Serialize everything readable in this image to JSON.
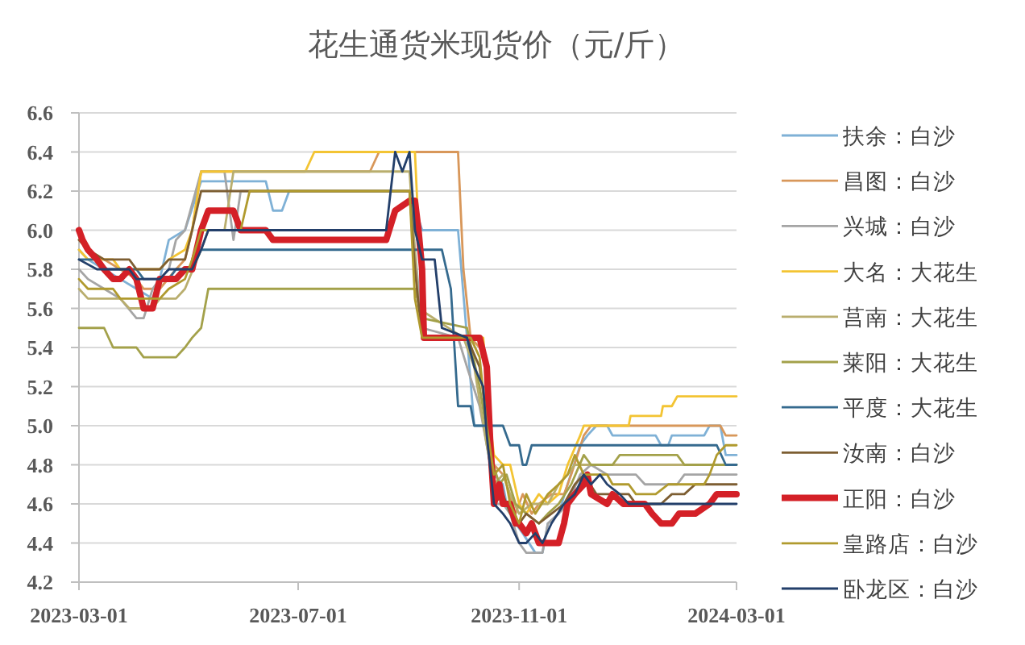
{
  "chart_data": {
    "type": "line",
    "title": "花生通货米现货价（元/斤）",
    "xlim": [
      "2023-03-01",
      "2024-03-01"
    ],
    "xticks": [
      "2023-03-01",
      "2023-07-01",
      "2023-11-01",
      "2024-03-01"
    ],
    "ylim": [
      4.2,
      6.6
    ],
    "yticks": [
      4.2,
      4.4,
      4.6,
      4.8,
      {
        "value": 5,
        "label": "5.0"
      },
      5.2,
      5.4,
      5.6,
      5.8,
      {
        "value": 6,
        "label": "6.0"
      },
      6.2,
      6.4,
      6.6
    ],
    "grid": "y",
    "legend": "right",
    "series": [
      {
        "name": "扶余：白沙",
        "color": "#7fb1d6",
        "x": [
          "2023-03-01",
          "2023-03-06",
          "2023-03-15",
          "2023-03-24",
          "2023-04-02",
          "2023-04-11",
          "2023-04-15",
          "2023-04-20",
          "2023-04-29",
          "2023-05-08",
          "2023-06-13",
          "2023-06-17",
          "2023-06-22",
          "2023-06-26",
          "2023-09-01",
          "2023-09-08",
          "2023-09-28",
          "2023-10-03",
          "2023-10-07",
          "2023-10-14",
          "2023-10-16",
          "2023-10-18",
          "2023-10-23",
          "2023-10-25",
          "2023-10-30",
          "2023-11-03",
          "2023-11-10",
          "2023-11-14",
          "2023-11-17",
          "2023-11-23",
          "2023-11-28",
          "2023-12-05",
          "2023-12-09",
          "2023-12-14",
          "2023-12-20",
          "2023-12-23",
          "2024-01-16",
          "2024-01-19",
          "2024-01-23",
          "2024-01-25",
          "2024-02-12",
          "2024-02-15",
          "2024-02-21",
          "2024-02-24",
          "2024-03-01"
        ],
        "values": [
          5.9,
          5.85,
          5.8,
          5.75,
          5.7,
          5.65,
          5.75,
          5.95,
          6.0,
          6.25,
          6.25,
          6.1,
          6.1,
          6.2,
          6.2,
          6.0,
          6.0,
          5.45,
          5.0,
          5.0,
          4.9,
          4.75,
          4.7,
          4.6,
          4.5,
          4.45,
          4.35,
          4.35,
          4.5,
          4.55,
          4.7,
          4.9,
          4.95,
          5.0,
          5.0,
          4.95,
          4.95,
          4.9,
          4.9,
          4.95,
          4.95,
          5.0,
          5.0,
          4.85,
          4.85
        ]
      },
      {
        "name": "昌图：白沙",
        "color": "#d8975a",
        "x": [
          "2023-03-01",
          "2023-03-06",
          "2023-03-15",
          "2023-03-24",
          "2023-04-02",
          "2023-04-06",
          "2023-04-15",
          "2023-04-24",
          "2023-04-29",
          "2023-05-03",
          "2023-05-08",
          "2023-08-10",
          "2023-08-15",
          "2023-09-28",
          "2023-10-01",
          "2023-10-05",
          "2023-10-10",
          "2023-10-14",
          "2023-10-16",
          "2023-10-18",
          "2023-10-23",
          "2023-10-25",
          "2023-10-30",
          "2023-11-03",
          "2023-11-08",
          "2023-11-12",
          "2023-11-19",
          "2023-11-26",
          "2023-11-30",
          "2023-12-07",
          "2023-12-11",
          "2024-02-21",
          "2024-02-24",
          "2024-03-01"
        ],
        "values": [
          5.95,
          5.9,
          5.85,
          5.8,
          5.75,
          5.7,
          5.7,
          5.8,
          5.85,
          6.0,
          6.3,
          6.3,
          6.4,
          6.4,
          5.8,
          5.45,
          5.4,
          5.3,
          4.95,
          4.8,
          4.75,
          4.7,
          4.55,
          4.65,
          4.55,
          4.6,
          4.65,
          4.65,
          4.75,
          4.95,
          5.0,
          5.0,
          4.95,
          4.95
        ]
      },
      {
        "name": "兴城：白沙",
        "color": "#a5a5a5",
        "x": [
          "2023-03-01",
          "2023-03-06",
          "2023-03-15",
          "2023-03-24",
          "2023-04-02",
          "2023-04-06",
          "2023-04-11",
          "2023-04-15",
          "2023-04-20",
          "2023-04-24",
          "2023-04-29",
          "2023-05-08",
          "2023-05-21",
          "2023-05-26",
          "2023-05-30",
          "2023-09-01",
          "2023-09-04",
          "2023-09-08",
          "2023-09-28",
          "2023-10-03",
          "2023-10-10",
          "2023-10-16",
          "2023-10-18",
          "2023-10-23",
          "2023-10-27",
          "2023-11-01",
          "2023-11-05",
          "2023-11-14",
          "2023-11-17",
          "2023-11-23",
          "2023-11-28",
          "2023-12-05",
          "2023-12-11",
          "2023-12-20",
          "2024-01-05",
          "2024-01-10",
          "2024-01-28",
          "2024-02-01",
          "2024-03-01"
        ],
        "values": [
          5.8,
          5.75,
          5.7,
          5.65,
          5.55,
          5.55,
          5.7,
          5.75,
          5.8,
          5.95,
          6.0,
          6.3,
          6.3,
          5.95,
          6.2,
          6.2,
          5.9,
          5.5,
          5.45,
          5.3,
          5.1,
          4.8,
          4.6,
          4.6,
          4.55,
          4.4,
          4.35,
          4.35,
          4.5,
          4.55,
          4.6,
          4.75,
          4.8,
          4.75,
          4.75,
          4.7,
          4.7,
          4.75,
          4.75
        ]
      },
      {
        "name": "大名：大花生",
        "color": "#f3c433",
        "x": [
          "2023-03-01",
          "2023-03-06",
          "2023-03-20",
          "2023-03-24",
          "2023-04-15",
          "2023-04-20",
          "2023-04-29",
          "2023-05-03",
          "2023-05-08",
          "2023-07-05",
          "2023-07-10",
          "2023-09-04",
          "2023-09-08",
          "2023-09-10",
          "2023-10-12",
          "2023-10-16",
          "2023-10-18",
          "2023-10-23",
          "2023-10-27",
          "2023-11-01",
          "2023-11-05",
          "2023-11-12",
          "2023-11-17",
          "2023-11-23",
          "2023-11-28",
          "2023-12-05",
          "2023-12-07",
          "2024-01-01",
          "2024-01-02",
          "2024-01-19",
          "2024-01-20",
          "2024-01-25",
          "2024-01-28",
          "2024-03-01"
        ],
        "values": [
          5.9,
          5.85,
          5.85,
          5.8,
          5.8,
          5.85,
          5.9,
          6.0,
          6.3,
          6.3,
          6.4,
          6.4,
          5.6,
          5.45,
          5.45,
          5.0,
          4.85,
          4.8,
          4.8,
          4.6,
          4.55,
          4.65,
          4.6,
          4.65,
          4.8,
          4.95,
          5.0,
          5.0,
          5.05,
          5.05,
          5.1,
          5.1,
          5.15,
          5.15
        ]
      },
      {
        "name": "莒南：大花生",
        "color": "#b9ae6e",
        "x": [
          "2023-03-01",
          "2023-03-06",
          "2023-03-24",
          "2023-03-29",
          "2023-04-11",
          "2023-04-15",
          "2023-04-24",
          "2023-04-29",
          "2023-05-08",
          "2023-05-12",
          "2023-05-21",
          "2023-05-26",
          "2023-09-01",
          "2023-09-06",
          "2023-10-01",
          "2023-10-07",
          "2023-10-14",
          "2023-10-18",
          "2023-10-23",
          "2023-10-27",
          "2023-11-01",
          "2023-11-08",
          "2023-11-17",
          "2023-11-23",
          "2023-11-28",
          "2023-12-02",
          "2024-03-01"
        ],
        "values": [
          5.7,
          5.65,
          5.65,
          5.6,
          5.6,
          5.65,
          5.65,
          5.7,
          5.9,
          6.0,
          6.0,
          6.3,
          6.3,
          5.6,
          5.45,
          5.3,
          4.9,
          4.7,
          4.75,
          4.65,
          4.55,
          4.6,
          4.6,
          4.7,
          4.75,
          4.8,
          4.8
        ]
      },
      {
        "name": "莱阳：大花生",
        "color": "#a3a14a",
        "x": [
          "2023-03-01",
          "2023-03-15",
          "2023-03-20",
          "2023-04-02",
          "2023-04-06",
          "2023-04-24",
          "2023-04-29",
          "2023-05-03",
          "2023-05-08",
          "2023-05-12",
          "2023-09-04",
          "2023-09-08",
          "2023-10-03",
          "2023-10-10",
          "2023-10-16",
          "2023-10-21",
          "2023-10-25",
          "2023-10-30",
          "2023-11-05",
          "2023-11-12",
          "2023-11-17",
          "2023-11-23",
          "2023-11-30",
          "2023-12-07",
          "2023-12-11",
          "2023-12-23",
          "2023-12-27",
          "2024-01-28",
          "2024-02-01",
          "2024-03-01"
        ],
        "values": [
          5.5,
          5.5,
          5.4,
          5.4,
          5.35,
          5.35,
          5.4,
          5.45,
          5.5,
          5.7,
          5.7,
          5.55,
          5.5,
          5.2,
          4.85,
          4.7,
          4.75,
          4.6,
          4.55,
          4.5,
          4.55,
          4.6,
          4.7,
          4.85,
          4.8,
          4.8,
          4.85,
          4.85,
          4.8,
          4.8
        ]
      },
      {
        "name": "平度：大花生",
        "color": "#356a8e",
        "x": [
          "2023-03-01",
          "2023-03-11",
          "2023-03-15",
          "2023-04-02",
          "2023-04-06",
          "2023-04-20",
          "2023-04-24",
          "2023-05-03",
          "2023-05-08",
          "2023-09-19",
          "2023-09-24",
          "2023-09-28",
          "2023-10-05",
          "2023-10-07",
          "2023-10-23",
          "2023-10-27",
          "2023-11-01",
          "2023-11-03",
          "2023-11-05",
          "2023-11-08",
          "2024-02-19",
          "2024-02-24",
          "2024-03-01"
        ],
        "values": [
          5.85,
          5.85,
          5.8,
          5.8,
          5.75,
          5.75,
          5.8,
          5.8,
          5.9,
          5.9,
          5.7,
          5.1,
          5.1,
          5.0,
          5.0,
          4.9,
          4.9,
          4.8,
          4.8,
          4.9,
          4.9,
          4.8,
          4.8
        ]
      },
      {
        "name": "汝南：白沙",
        "color": "#7d5e32",
        "x": [
          "2023-03-01",
          "2023-03-06",
          "2023-03-15",
          "2023-03-29",
          "2023-04-02",
          "2023-04-15",
          "2023-04-20",
          "2023-04-29",
          "2023-05-03",
          "2023-05-08",
          "2023-09-01",
          "2023-09-04",
          "2023-09-08",
          "2023-10-03",
          "2023-10-10",
          "2023-10-16",
          "2023-10-18",
          "2023-10-23",
          "2023-10-27",
          "2023-11-01",
          "2023-11-05",
          "2023-11-12",
          "2023-11-19",
          "2023-11-26",
          "2023-12-02",
          "2023-12-07",
          "2023-12-14",
          "2024-01-01",
          "2024-01-05",
          "2024-01-19",
          "2024-01-25",
          "2024-02-01",
          "2024-02-07",
          "2024-03-01"
        ],
        "values": [
          5.95,
          5.9,
          5.85,
          5.85,
          5.8,
          5.8,
          5.85,
          5.85,
          6.0,
          6.2,
          6.2,
          5.8,
          5.45,
          5.45,
          5.3,
          4.9,
          4.6,
          4.65,
          4.55,
          4.5,
          4.55,
          4.5,
          4.55,
          4.6,
          4.7,
          4.75,
          4.65,
          4.65,
          4.6,
          4.6,
          4.65,
          4.65,
          4.7,
          4.7
        ]
      },
      {
        "name": "正阳：白沙",
        "color": "#d42027",
        "x": [
          "2023-03-01",
          "2023-03-03",
          "2023-03-06",
          "2023-03-11",
          "2023-03-15",
          "2023-03-20",
          "2023-03-24",
          "2023-03-29",
          "2023-04-02",
          "2023-04-06",
          "2023-04-11",
          "2023-04-15",
          "2023-04-24",
          "2023-04-29",
          "2023-05-03",
          "2023-05-08",
          "2023-05-12",
          "2023-05-26",
          "2023-05-30",
          "2023-06-13",
          "2023-06-17",
          "2023-08-19",
          "2023-08-24",
          "2023-09-01",
          "2023-09-04",
          "2023-09-06",
          "2023-09-08",
          "2023-09-09",
          "2023-10-10",
          "2023-10-14",
          "2023-10-16",
          "2023-10-18",
          "2023-10-21",
          "2023-10-23",
          "2023-10-27",
          "2023-10-30",
          "2023-11-01",
          "2023-11-05",
          "2023-11-08",
          "2023-11-12",
          "2023-11-23",
          "2023-11-26",
          "2023-11-28",
          "2023-12-02",
          "2023-12-07",
          "2023-12-09",
          "2023-12-11",
          "2023-12-20",
          "2023-12-23",
          "2023-12-29",
          "2024-01-10",
          "2024-01-14",
          "2024-01-19",
          "2024-01-25",
          "2024-01-29",
          "2024-02-07",
          "2024-02-15",
          "2024-02-19",
          "2024-03-01"
        ],
        "values": [
          6.0,
          5.95,
          5.9,
          5.85,
          5.8,
          5.75,
          5.75,
          5.8,
          5.75,
          5.6,
          5.6,
          5.75,
          5.75,
          5.8,
          5.8,
          6.0,
          6.1,
          6.1,
          6.0,
          6.0,
          5.95,
          5.95,
          6.1,
          6.15,
          6.15,
          6.0,
          5.8,
          5.45,
          5.45,
          5.3,
          4.9,
          4.6,
          4.7,
          4.6,
          4.6,
          4.5,
          4.5,
          4.45,
          4.5,
          4.4,
          4.4,
          4.5,
          4.6,
          4.65,
          4.7,
          4.75,
          4.65,
          4.6,
          4.65,
          4.6,
          4.6,
          4.55,
          4.5,
          4.5,
          4.55,
          4.55,
          4.6,
          4.65,
          4.65
        ]
      },
      {
        "name": "皇路店：白沙",
        "color": "#b09a2e",
        "x": [
          "2023-03-01",
          "2023-03-06",
          "2023-03-20",
          "2023-03-24",
          "2023-04-15",
          "2023-04-20",
          "2023-04-29",
          "2023-05-03",
          "2023-05-08",
          "2023-05-30",
          "2023-06-04",
          "2023-09-01",
          "2023-09-04",
          "2023-09-08",
          "2023-10-05",
          "2023-10-10",
          "2023-10-14",
          "2023-10-18",
          "2023-10-23",
          "2023-10-27",
          "2023-11-01",
          "2023-11-05",
          "2023-11-10",
          "2023-11-17",
          "2023-11-23",
          "2023-11-28",
          "2023-12-02",
          "2023-12-07",
          "2023-12-20",
          "2023-12-23",
          "2024-01-01",
          "2024-01-05",
          "2024-01-16",
          "2024-01-23",
          "2024-02-12",
          "2024-02-15",
          "2024-02-19",
          "2024-02-24",
          "2024-03-01"
        ],
        "values": [
          5.75,
          5.7,
          5.7,
          5.65,
          5.65,
          5.7,
          5.75,
          5.85,
          6.0,
          6.0,
          6.2,
          6.2,
          5.65,
          5.45,
          5.45,
          5.35,
          5.0,
          4.75,
          4.8,
          4.6,
          4.5,
          4.65,
          4.55,
          4.65,
          4.7,
          4.75,
          4.85,
          4.75,
          4.75,
          4.7,
          4.7,
          4.65,
          4.65,
          4.7,
          4.7,
          4.75,
          4.85,
          4.9,
          4.9
        ]
      },
      {
        "name": "卧龙区：白沙",
        "color": "#233f6a",
        "x": [
          "2023-03-01",
          "2023-03-11",
          "2023-03-29",
          "2023-04-02",
          "2023-04-15",
          "2023-04-20",
          "2023-05-03",
          "2023-05-08",
          "2023-05-12",
          "2023-08-19",
          "2023-08-24",
          "2023-08-28",
          "2023-09-01",
          "2023-09-04",
          "2023-09-08",
          "2023-09-15",
          "2023-09-19",
          "2023-10-03",
          "2023-10-07",
          "2023-10-12",
          "2023-10-14",
          "2023-10-18",
          "2023-10-23",
          "2023-10-27",
          "2023-11-01",
          "2023-11-05",
          "2023-11-10",
          "2023-11-14",
          "2023-11-19",
          "2023-11-26",
          "2023-12-02",
          "2023-12-07",
          "2023-12-11",
          "2023-12-16",
          "2023-12-20",
          "2023-12-27",
          "2024-01-01",
          "2024-03-01"
        ],
        "values": [
          5.85,
          5.8,
          5.8,
          5.75,
          5.75,
          5.8,
          5.8,
          5.9,
          6.0,
          6.0,
          6.4,
          6.3,
          6.4,
          6.0,
          5.85,
          5.85,
          5.5,
          5.45,
          5.3,
          5.2,
          4.95,
          4.6,
          4.55,
          4.5,
          4.4,
          4.4,
          4.45,
          4.4,
          4.5,
          4.6,
          4.65,
          4.75,
          4.7,
          4.75,
          4.7,
          4.65,
          4.6,
          4.6
        ]
      }
    ]
  }
}
